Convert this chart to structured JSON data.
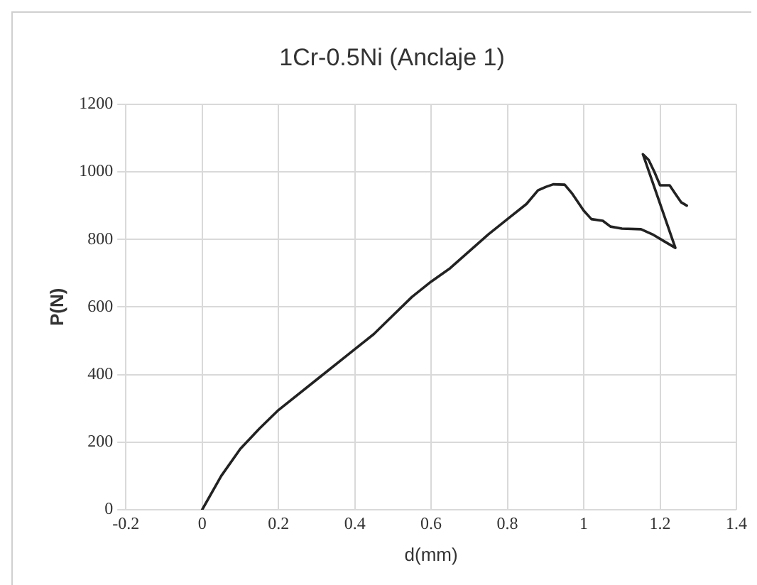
{
  "chart_data": {
    "type": "line",
    "title": "1Cr-0.5Ni (Anclaje 1)",
    "xlabel": "d(mm)",
    "ylabel": "P(N)",
    "x": [
      0,
      0.05,
      0.1,
      0.15,
      0.2,
      0.3,
      0.4,
      0.45,
      0.5,
      0.55,
      0.6,
      0.65,
      0.7,
      0.75,
      0.8,
      0.85,
      0.88,
      0.9,
      0.92,
      0.95,
      0.97,
      1.0,
      1.02,
      1.05,
      1.07,
      1.1,
      1.15,
      1.18,
      1.21,
      1.24,
      1.155,
      1.17,
      1.185,
      1.2,
      1.225,
      1.24,
      1.255,
      1.27
    ],
    "series": [
      {
        "color": "#222222",
        "values": [
          0,
          100,
          180,
          240,
          295,
          385,
          475,
          520,
          575,
          630,
          675,
          715,
          765,
          815,
          860,
          905,
          945,
          955,
          963,
          962,
          935,
          885,
          860,
          855,
          838,
          832,
          830,
          815,
          795,
          775,
          1052,
          1035,
          1000,
          960,
          960,
          935,
          910,
          900
        ]
      }
    ],
    "xlim": [
      -0.2,
      1.4
    ],
    "xticks": [
      -0.2,
      0,
      0.2,
      0.4,
      0.6,
      0.8,
      1,
      1.2,
      1.4
    ],
    "ylim": [
      0,
      1200
    ],
    "yticks": [
      0,
      200,
      400,
      600,
      800,
      1000,
      1200
    ],
    "grid": true,
    "legend": false,
    "marker": "none",
    "line_style": "solid"
  }
}
